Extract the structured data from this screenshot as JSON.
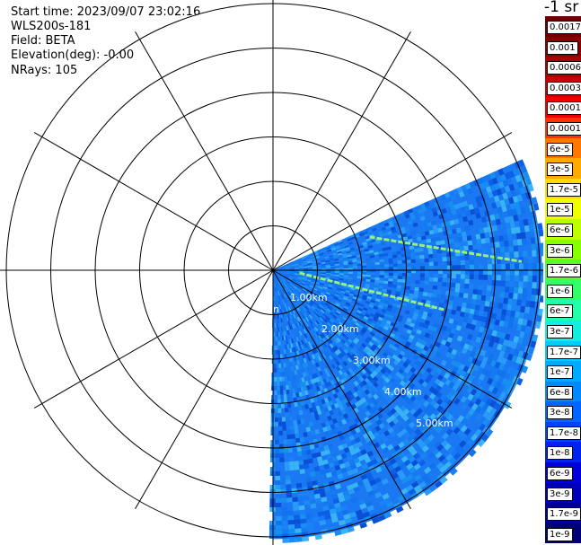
{
  "info": {
    "start_time": "Start time: 2023/09/07 23:02:16",
    "instrument": "WLS200s-181",
    "field": "Field: BETA",
    "elevation": "Elevation(deg): -0.00",
    "nrays": "NRays: 105"
  },
  "colorbar": {
    "title": "-1 sr",
    "labels": [
      "0.0017",
      "0.001",
      "0.0006",
      "0.0003",
      "0.00017",
      "0.0001",
      "6e-5",
      "3e-5",
      "1.7e-5",
      "1e-5",
      "6e-6",
      "3e-6",
      "1.7e-6",
      "1e-6",
      "6e-7",
      "3e-7",
      "1.7e-7",
      "1e-7",
      "6e-8",
      "3e-8",
      "1.7e-8",
      "1e-8",
      "6e-9",
      "3e-9",
      "1.7e-9",
      "1e-9"
    ],
    "colors": [
      "#6b0000",
      "#8a0000",
      "#ac0000",
      "#cc0000",
      "#ee0000",
      "#ff3300",
      "#ff7700",
      "#ffaa00",
      "#ffdd00",
      "#eeff00",
      "#bbff00",
      "#88ff00",
      "#55ff22",
      "#33ff66",
      "#22ffaa",
      "#11eedd",
      "#00ccff",
      "#00aaff",
      "#0088ff",
      "#0066ff",
      "#0044ff",
      "#0022ee",
      "#0000dd",
      "#0000bb",
      "#000099",
      "#000077"
    ]
  },
  "chart_data": {
    "type": "heatmap",
    "projection": "polar PPI (north up, clockwise azimuth)",
    "field": "BETA",
    "units": "-1 sr",
    "range_rings_km": [
      1,
      2,
      3,
      4,
      5,
      6
    ],
    "range_labels": [
      "1.00km",
      "2.00km",
      "3.00km",
      "4.00km",
      "5.00km"
    ],
    "center_label": "n",
    "azimuth_spokes_deg": [
      0,
      30,
      60,
      90,
      120,
      150,
      180,
      210,
      240,
      270,
      300,
      330
    ],
    "sector_deg": [
      66,
      180
    ],
    "max_range_km": 6.05,
    "color_scale": "log",
    "typical_beta": "1e-8 to 1e-7",
    "features": [
      {
        "type": "aerosol layer line",
        "azimuth_start_deg": 71,
        "azimuth_end_deg": 88,
        "range_start_km": 2.3,
        "range_end_km": 5.6,
        "beta": "1e-6"
      },
      {
        "type": "aerosol layer line",
        "azimuth_start_deg": 96,
        "azimuth_end_deg": 103,
        "range_start_km": 0.6,
        "range_end_km": 4.0,
        "beta": "1e-6"
      }
    ]
  }
}
